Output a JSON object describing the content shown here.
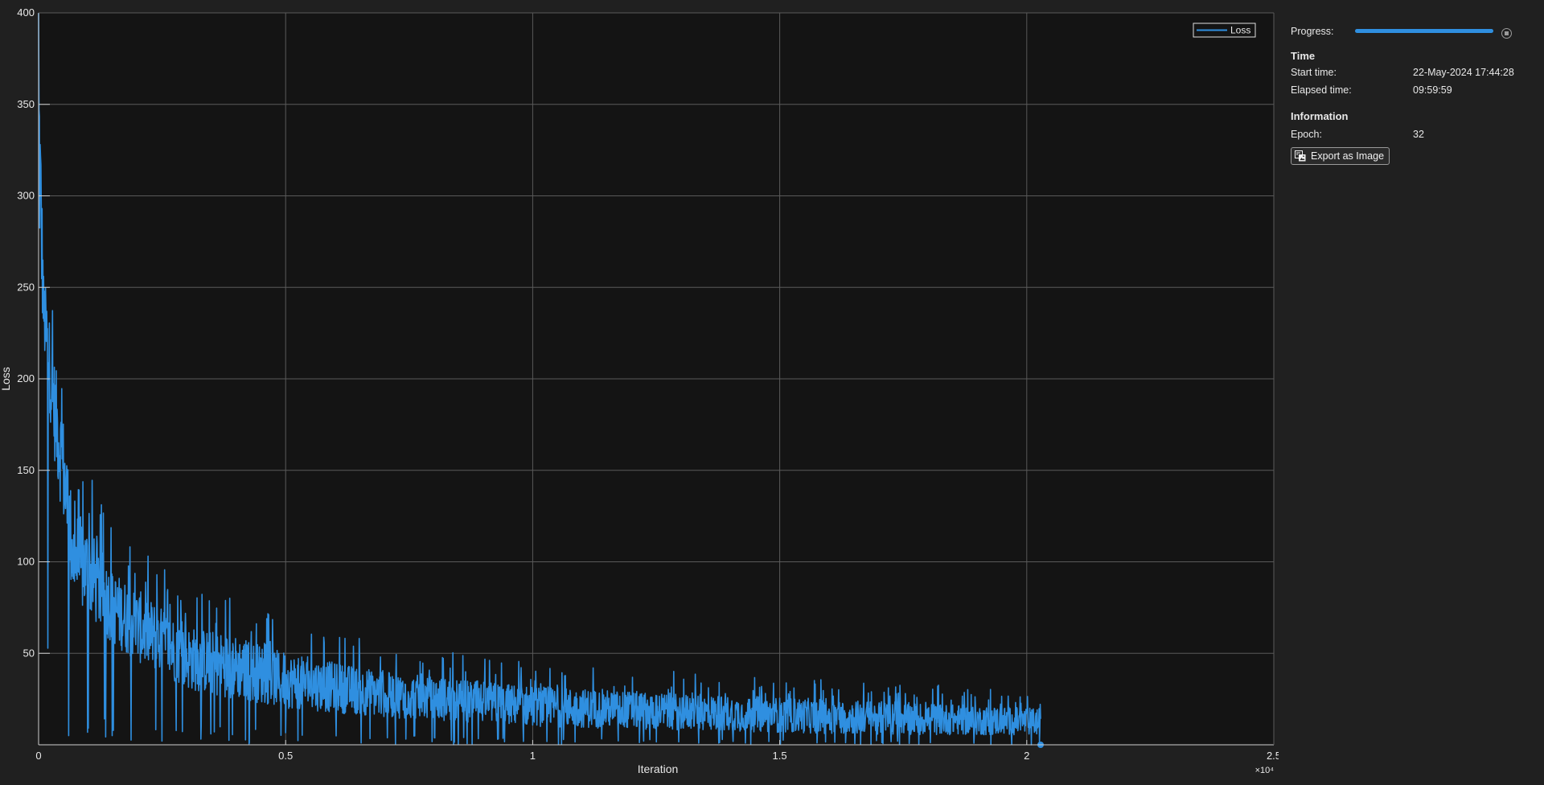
{
  "chart_data": {
    "type": "line",
    "title": "",
    "xlabel": "Iteration",
    "ylabel": "Loss",
    "xlim": [
      0,
      25000
    ],
    "ylim": [
      0,
      400
    ],
    "x_exponent_label": "×10⁴",
    "x_ticks": [
      {
        "value": 0,
        "label": "0"
      },
      {
        "value": 5000,
        "label": "0.5"
      },
      {
        "value": 10000,
        "label": "1"
      },
      {
        "value": 15000,
        "label": "1.5"
      },
      {
        "value": 20000,
        "label": "2"
      },
      {
        "value": 25000,
        "label": "2.5"
      }
    ],
    "y_ticks": [
      {
        "value": 50,
        "label": "50"
      },
      {
        "value": 100,
        "label": "100"
      },
      {
        "value": 150,
        "label": "150"
      },
      {
        "value": 200,
        "label": "200"
      },
      {
        "value": 250,
        "label": "250"
      },
      {
        "value": 300,
        "label": "300"
      },
      {
        "value": 350,
        "label": "350"
      },
      {
        "value": 400,
        "label": "400"
      }
    ],
    "grid": true,
    "legend": {
      "position": "top-right",
      "entries": [
        "Loss"
      ]
    },
    "series": [
      {
        "name": "Loss",
        "color": "#2f8fe0",
        "total_iterations": 20280,
        "last_value": 0,
        "envelope": [
          {
            "iteration": 0,
            "low": 280,
            "high": 400
          },
          {
            "iteration": 100,
            "low": 215,
            "high": 260
          },
          {
            "iteration": 300,
            "low": 160,
            "high": 215
          },
          {
            "iteration": 500,
            "low": 120,
            "high": 180
          },
          {
            "iteration": 700,
            "low": 75,
            "high": 130
          },
          {
            "iteration": 1000,
            "low": 70,
            "high": 120
          },
          {
            "iteration": 1500,
            "low": 55,
            "high": 95
          },
          {
            "iteration": 2000,
            "low": 45,
            "high": 85
          },
          {
            "iteration": 3000,
            "low": 30,
            "high": 65
          },
          {
            "iteration": 4000,
            "low": 25,
            "high": 60
          },
          {
            "iteration": 5000,
            "low": 20,
            "high": 50
          },
          {
            "iteration": 7000,
            "low": 15,
            "high": 40
          },
          {
            "iteration": 10000,
            "low": 10,
            "high": 32
          },
          {
            "iteration": 13000,
            "low": 8,
            "high": 28
          },
          {
            "iteration": 16000,
            "low": 6,
            "high": 25
          },
          {
            "iteration": 20280,
            "low": 5,
            "high": 20
          }
        ]
      }
    ]
  },
  "panel": {
    "progress_label": "Progress:",
    "progress_value": 1.0,
    "time_section": "Time",
    "start_time_label": "Start time:",
    "start_time_value": "22-May-2024 17:44:28",
    "elapsed_time_label": "Elapsed time:",
    "elapsed_time_value": "09:59:59",
    "info_section": "Information",
    "epoch_label": "Epoch:",
    "epoch_value": "32",
    "export_label": "Export as Image"
  },
  "colors": {
    "background": "#202020",
    "plot_background": "#141414",
    "grid": "#5a5a5a",
    "series": "#2f8fe0",
    "text": "#e8e8e8"
  }
}
